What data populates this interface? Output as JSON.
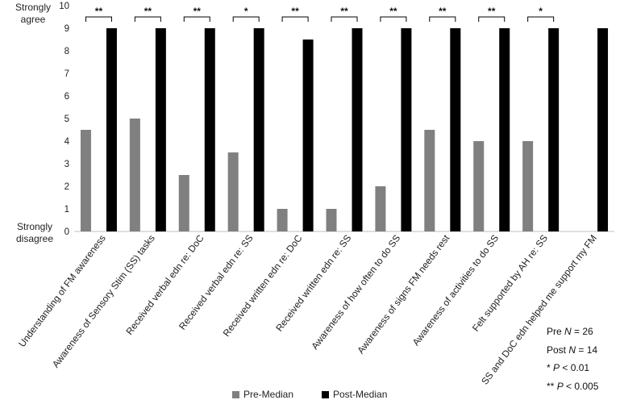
{
  "chart_data": {
    "type": "bar",
    "categories": [
      "Understanding of FM awareness",
      "Awareness of Sensory Stim (SS) tasks",
      "Received verbal edn re: DoC",
      "Received verbal edn re: SS",
      "Received written edn re: DoC",
      "Received written edn re: SS",
      "Awareness of how often to do SS",
      "Awareness of signs FM needs rest",
      "Awareness of activities to do SS",
      "Felt supported by AH re: SS",
      "SS and DoC edn helped me support my FM"
    ],
    "series": [
      {
        "name": "Pre-Median",
        "color": "#808080",
        "values": [
          4.5,
          5,
          2.5,
          3.5,
          1,
          1,
          2,
          4.5,
          4,
          4,
          null
        ]
      },
      {
        "name": "Post-Median",
        "color": "#000000",
        "values": [
          9,
          9,
          9,
          9,
          8.5,
          9,
          9,
          9,
          9,
          9,
          9
        ]
      }
    ],
    "significance": [
      "**",
      "**",
      "**",
      "*",
      "**",
      "**",
      "**",
      "**",
      "**",
      "*",
      ""
    ],
    "ylim": [
      0,
      10
    ],
    "yticks": [
      0,
      1,
      2,
      3,
      4,
      5,
      6,
      7,
      8,
      9,
      10
    ],
    "y_top_label": [
      "Strongly",
      "agree"
    ],
    "y_bottom_label": [
      "Strongly",
      "disagree"
    ],
    "grid": false,
    "legend_position": "bottom"
  },
  "notes": {
    "pre_n_prefix": "Pre ",
    "pre_n_var": "N",
    "pre_n_value": " = 26",
    "post_n_prefix": "Post ",
    "post_n_var": "N",
    "post_n_value": " = 14",
    "sig1_prefix": "* ",
    "sig1_var": "P",
    "sig1_value": " < 0.01",
    "sig2_prefix": "** ",
    "sig2_var": "P",
    "sig2_value": " < 0.005"
  }
}
